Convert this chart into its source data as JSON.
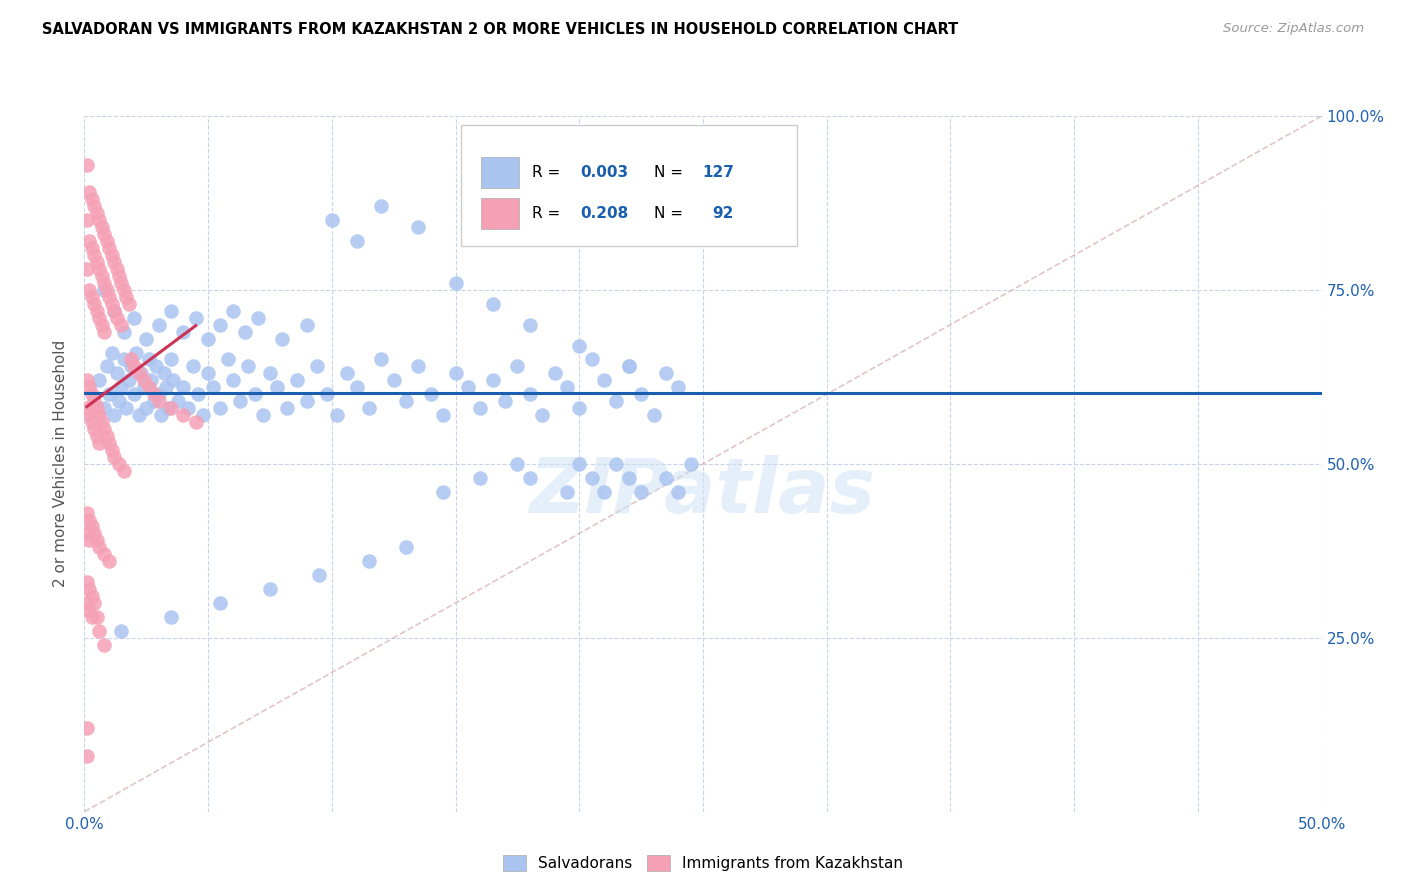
{
  "title": "SALVADORAN VS IMMIGRANTS FROM KAZAKHSTAN 2 OR MORE VEHICLES IN HOUSEHOLD CORRELATION CHART",
  "source": "Source: ZipAtlas.com",
  "ylabel": "2 or more Vehicles in Household",
  "xmin": 0.0,
  "xmax": 0.5,
  "ymin": 0.0,
  "ymax": 1.0,
  "blue_color": "#aac4f0",
  "pink_color": "#f5a0b5",
  "trend_blue_color": "#1a5faf",
  "trend_pink_color": "#cc3355",
  "diagonal_color": "#d8b8b8",
  "watermark": "ZIPatlas",
  "blue_scatter_x": [
    0.006,
    0.008,
    0.009,
    0.01,
    0.011,
    0.012,
    0.013,
    0.014,
    0.015,
    0.016,
    0.017,
    0.018,
    0.019,
    0.02,
    0.021,
    0.022,
    0.023,
    0.024,
    0.025,
    0.026,
    0.027,
    0.028,
    0.029,
    0.03,
    0.031,
    0.032,
    0.033,
    0.034,
    0.035,
    0.036,
    0.038,
    0.04,
    0.042,
    0.044,
    0.046,
    0.048,
    0.05,
    0.052,
    0.055,
    0.058,
    0.06,
    0.063,
    0.066,
    0.069,
    0.072,
    0.075,
    0.078,
    0.082,
    0.086,
    0.09,
    0.094,
    0.098,
    0.102,
    0.106,
    0.11,
    0.115,
    0.12,
    0.125,
    0.13,
    0.135,
    0.14,
    0.145,
    0.15,
    0.155,
    0.16,
    0.165,
    0.17,
    0.175,
    0.18,
    0.185,
    0.19,
    0.195,
    0.2,
    0.205,
    0.21,
    0.215,
    0.22,
    0.225,
    0.23,
    0.235,
    0.008,
    0.012,
    0.016,
    0.02,
    0.025,
    0.03,
    0.035,
    0.04,
    0.045,
    0.05,
    0.055,
    0.06,
    0.065,
    0.07,
    0.08,
    0.09,
    0.1,
    0.11,
    0.12,
    0.135,
    0.15,
    0.165,
    0.18,
    0.2,
    0.22,
    0.24,
    0.18,
    0.21,
    0.2,
    0.22,
    0.24,
    0.245,
    0.235,
    0.225,
    0.215,
    0.205,
    0.195,
    0.175,
    0.16,
    0.145,
    0.13,
    0.115,
    0.095,
    0.075,
    0.055,
    0.035,
    0.015
  ],
  "blue_scatter_y": [
    0.62,
    0.58,
    0.64,
    0.6,
    0.66,
    0.57,
    0.63,
    0.59,
    0.61,
    0.65,
    0.58,
    0.62,
    0.64,
    0.6,
    0.66,
    0.57,
    0.63,
    0.61,
    0.58,
    0.65,
    0.62,
    0.59,
    0.64,
    0.6,
    0.57,
    0.63,
    0.61,
    0.58,
    0.65,
    0.62,
    0.59,
    0.61,
    0.58,
    0.64,
    0.6,
    0.57,
    0.63,
    0.61,
    0.58,
    0.65,
    0.62,
    0.59,
    0.64,
    0.6,
    0.57,
    0.63,
    0.61,
    0.58,
    0.62,
    0.59,
    0.64,
    0.6,
    0.57,
    0.63,
    0.61,
    0.58,
    0.65,
    0.62,
    0.59,
    0.64,
    0.6,
    0.57,
    0.63,
    0.61,
    0.58,
    0.62,
    0.59,
    0.64,
    0.6,
    0.57,
    0.63,
    0.61,
    0.58,
    0.65,
    0.62,
    0.59,
    0.64,
    0.6,
    0.57,
    0.63,
    0.75,
    0.72,
    0.69,
    0.71,
    0.68,
    0.7,
    0.72,
    0.69,
    0.71,
    0.68,
    0.7,
    0.72,
    0.69,
    0.71,
    0.68,
    0.7,
    0.85,
    0.82,
    0.87,
    0.84,
    0.76,
    0.73,
    0.7,
    0.67,
    0.64,
    0.61,
    0.48,
    0.46,
    0.5,
    0.48,
    0.46,
    0.5,
    0.48,
    0.46,
    0.5,
    0.48,
    0.46,
    0.5,
    0.48,
    0.46,
    0.38,
    0.36,
    0.34,
    0.32,
    0.3,
    0.28,
    0.26
  ],
  "pink_scatter_x": [
    0.001,
    0.001,
    0.001,
    0.002,
    0.002,
    0.002,
    0.003,
    0.003,
    0.003,
    0.004,
    0.004,
    0.004,
    0.005,
    0.005,
    0.005,
    0.006,
    0.006,
    0.006,
    0.007,
    0.007,
    0.007,
    0.008,
    0.008,
    0.008,
    0.009,
    0.009,
    0.01,
    0.01,
    0.011,
    0.011,
    0.012,
    0.012,
    0.013,
    0.013,
    0.014,
    0.015,
    0.015,
    0.016,
    0.017,
    0.018,
    0.019,
    0.02,
    0.022,
    0.024,
    0.026,
    0.028,
    0.03,
    0.035,
    0.04,
    0.045,
    0.001,
    0.001,
    0.002,
    0.002,
    0.003,
    0.003,
    0.004,
    0.004,
    0.005,
    0.005,
    0.006,
    0.006,
    0.007,
    0.008,
    0.009,
    0.01,
    0.011,
    0.012,
    0.014,
    0.016,
    0.001,
    0.001,
    0.002,
    0.002,
    0.003,
    0.004,
    0.005,
    0.006,
    0.008,
    0.01,
    0.001,
    0.001,
    0.002,
    0.002,
    0.003,
    0.003,
    0.004,
    0.005,
    0.006,
    0.008,
    0.001,
    0.001
  ],
  "pink_scatter_y": [
    0.93,
    0.85,
    0.78,
    0.89,
    0.82,
    0.75,
    0.88,
    0.81,
    0.74,
    0.87,
    0.8,
    0.73,
    0.86,
    0.79,
    0.72,
    0.85,
    0.78,
    0.71,
    0.84,
    0.77,
    0.7,
    0.83,
    0.76,
    0.69,
    0.82,
    0.75,
    0.81,
    0.74,
    0.8,
    0.73,
    0.79,
    0.72,
    0.78,
    0.71,
    0.77,
    0.76,
    0.7,
    0.75,
    0.74,
    0.73,
    0.65,
    0.64,
    0.63,
    0.62,
    0.61,
    0.6,
    0.59,
    0.58,
    0.57,
    0.56,
    0.62,
    0.58,
    0.61,
    0.57,
    0.6,
    0.56,
    0.59,
    0.55,
    0.58,
    0.54,
    0.57,
    0.53,
    0.56,
    0.55,
    0.54,
    0.53,
    0.52,
    0.51,
    0.5,
    0.49,
    0.43,
    0.4,
    0.42,
    0.39,
    0.41,
    0.4,
    0.39,
    0.38,
    0.37,
    0.36,
    0.33,
    0.3,
    0.32,
    0.29,
    0.31,
    0.28,
    0.3,
    0.28,
    0.26,
    0.24,
    0.12,
    0.08
  ]
}
